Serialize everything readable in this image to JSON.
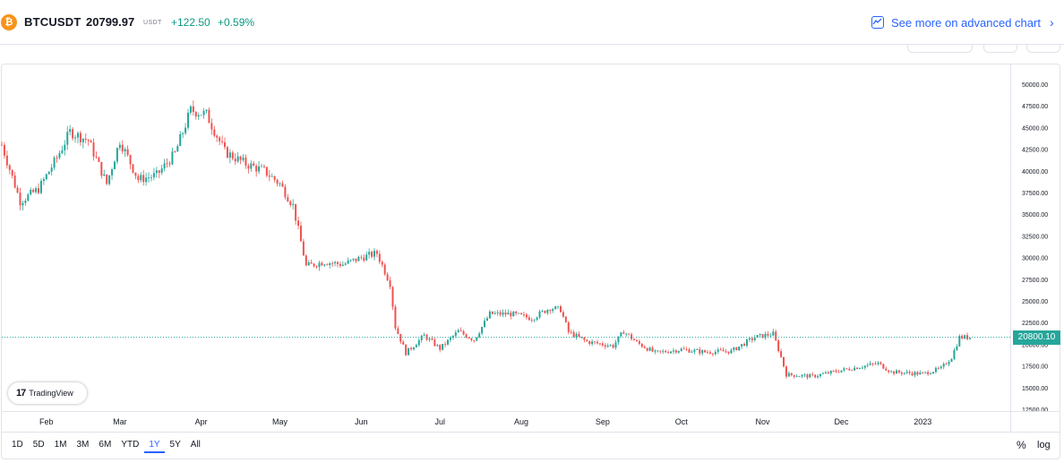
{
  "header": {
    "coin_icon": "bitcoin-icon",
    "symbol": "BTCUSDT",
    "price": "20799.97",
    "currency": "USDT",
    "change": "+122.50",
    "change_pct": "+0.59%",
    "advanced_link": "See more on advanced chart",
    "advanced_icon": "chart-icon",
    "chevron_icon": "chevron-right-icon"
  },
  "colors": {
    "up": "#26a69a",
    "down": "#ef5350",
    "accent": "#2962ff",
    "positive_text": "#089981"
  },
  "toolbar": {
    "ranges": [
      "1D",
      "5D",
      "1M",
      "3M",
      "6M",
      "YTD",
      "1Y",
      "5Y",
      "All"
    ],
    "active_range": "1Y",
    "percent_label": "%",
    "log_label": "log"
  },
  "watermark": "TradingView",
  "last_price_label": "20800.10",
  "chart_data": {
    "type": "candlestick",
    "symbol": "BTCUSDT",
    "x_tick_labels": [
      "Feb",
      "Mar",
      "Apr",
      "May",
      "Jun",
      "Jul",
      "Aug",
      "Sep",
      "Oct",
      "Nov",
      "Dec",
      "2023"
    ],
    "y_tick_labels": [
      "50000.00",
      "47500.00",
      "45000.00",
      "42500.00",
      "40000.00",
      "37500.00",
      "35000.00",
      "32500.00",
      "30000.00",
      "27500.00",
      "25000.00",
      "22500.00",
      "20000.00",
      "17500.00",
      "15000.00",
      "12500.00"
    ],
    "ylim": [
      12500,
      50000
    ],
    "last_price": 20800.1,
    "close_path": [
      [
        "2022-01-15",
        43000
      ],
      [
        "2022-01-22",
        36500
      ],
      [
        "2022-01-29",
        37900
      ],
      [
        "2022-02-05",
        41500
      ],
      [
        "2022-02-10",
        44500
      ],
      [
        "2022-02-17",
        43500
      ],
      [
        "2022-02-24",
        38500
      ],
      [
        "2022-03-01",
        43500
      ],
      [
        "2022-03-08",
        39000
      ],
      [
        "2022-03-15",
        39500
      ],
      [
        "2022-03-22",
        42000
      ],
      [
        "2022-03-28",
        47000
      ],
      [
        "2022-04-03",
        46500
      ],
      [
        "2022-04-10",
        42200
      ],
      [
        "2022-04-18",
        40800
      ],
      [
        "2022-04-25",
        40000
      ],
      [
        "2022-05-01",
        38500
      ],
      [
        "2022-05-06",
        36000
      ],
      [
        "2022-05-11",
        29000
      ],
      [
        "2022-05-18",
        29500
      ],
      [
        "2022-05-25",
        29200
      ],
      [
        "2022-06-01",
        30000
      ],
      [
        "2022-06-07",
        30500
      ],
      [
        "2022-06-12",
        27000
      ],
      [
        "2022-06-14",
        22000
      ],
      [
        "2022-06-18",
        19000
      ],
      [
        "2022-06-25",
        21000
      ],
      [
        "2022-07-01",
        19500
      ],
      [
        "2022-07-08",
        21500
      ],
      [
        "2022-07-14",
        20500
      ],
      [
        "2022-07-20",
        23500
      ],
      [
        "2022-07-28",
        23500
      ],
      [
        "2022-08-05",
        23000
      ],
      [
        "2022-08-12",
        24200
      ],
      [
        "2022-08-16",
        24000
      ],
      [
        "2022-08-19",
        21400
      ],
      [
        "2022-08-26",
        20300
      ],
      [
        "2022-09-05",
        19800
      ],
      [
        "2022-09-09",
        21500
      ],
      [
        "2022-09-14",
        20200
      ],
      [
        "2022-09-21",
        19000
      ],
      [
        "2022-10-01",
        19400
      ],
      [
        "2022-10-10",
        19100
      ],
      [
        "2022-10-20",
        19200
      ],
      [
        "2022-10-29",
        20800
      ],
      [
        "2022-11-05",
        21200
      ],
      [
        "2022-11-08",
        18500
      ],
      [
        "2022-11-10",
        16500
      ],
      [
        "2022-11-20",
        16300
      ],
      [
        "2022-12-01",
        17000
      ],
      [
        "2022-12-15",
        17800
      ],
      [
        "2022-12-20",
        16800
      ],
      [
        "2023-01-01",
        16600
      ],
      [
        "2023-01-08",
        17200
      ],
      [
        "2023-01-12",
        18500
      ],
      [
        "2023-01-15",
        20800
      ],
      [
        "2023-01-19",
        20800
      ]
    ]
  }
}
